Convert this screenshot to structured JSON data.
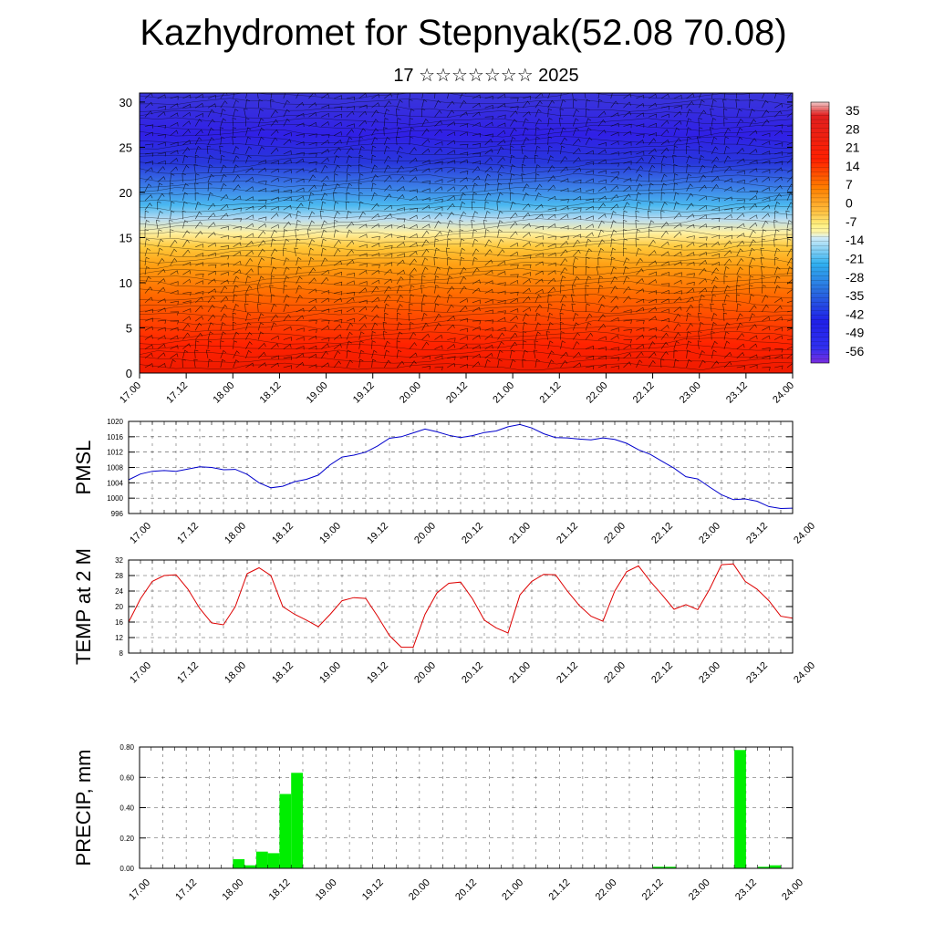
{
  "title": "Kazhydromet for Stepnyak(52.08 70.08)",
  "subtitle": "17 ☆☆☆☆☆☆☆ 2025",
  "time_labels": [
    "17.00",
    "17.12",
    "18.00",
    "18.12",
    "19.00",
    "19.12",
    "20.00",
    "20.12",
    "21.00",
    "21.12",
    "22.00",
    "22.12",
    "23.00",
    "23.12",
    "24.00"
  ],
  "chart_data": [
    {
      "type": "heatmap",
      "name": "upper-air-temperature-cross-section",
      "ylim": [
        0,
        31
      ],
      "yticks": [
        0,
        5,
        10,
        15,
        20,
        25,
        30
      ],
      "colorbar_labels": [
        "35",
        "28",
        "21",
        "14",
        "7",
        "0",
        "-7",
        "-14",
        "-21",
        "-28",
        "-35",
        "-42",
        "-49",
        "-56"
      ],
      "overlay": "wind barbs"
    },
    {
      "type": "line",
      "ylabel": "PMSL",
      "ylim": [
        996,
        1020
      ],
      "yticks": [
        996,
        1000,
        1004,
        1008,
        1012,
        1016,
        1020
      ],
      "x": [
        0,
        3,
        6,
        9,
        12,
        15,
        18,
        21,
        24,
        27,
        30,
        33,
        36,
        39,
        42,
        45,
        48,
        51,
        54,
        57,
        60,
        63,
        66,
        69,
        72,
        75,
        78,
        81,
        84,
        87,
        90,
        93,
        96,
        99,
        102,
        105,
        108,
        111,
        114,
        117,
        120,
        123,
        126,
        129,
        132,
        135,
        138,
        141,
        144,
        147,
        150,
        153,
        156,
        159,
        162,
        165,
        168
      ],
      "series": [
        {
          "color": "#0000cc",
          "values": [
            1004.8,
            1006.3,
            1007.0,
            1007.2,
            1007.0,
            1007.6,
            1008.2,
            1008.0,
            1007.4,
            1007.5,
            1006.2,
            1004.0,
            1002.7,
            1003.1,
            1004.3,
            1004.9,
            1006.0,
            1008.7,
            1010.7,
            1011.2,
            1012.0,
            1013.6,
            1015.6,
            1016.0,
            1017.0,
            1018.0,
            1017.3,
            1016.4,
            1015.8,
            1016.3,
            1017.1,
            1017.5,
            1018.6,
            1019.2,
            1018.3,
            1016.8,
            1015.8,
            1015.7,
            1015.4,
            1015.2,
            1015.7,
            1015.3,
            1014.3,
            1012.6,
            1011.4,
            1009.6,
            1007.8,
            1005.6,
            1005.0,
            1002.9,
            1000.9,
            999.6,
            999.8,
            999.2,
            997.8,
            997.3,
            997.4
          ]
        }
      ]
    },
    {
      "type": "line",
      "ylabel": "TEMP at 2 M",
      "ylim": [
        8,
        32
      ],
      "yticks": [
        8,
        12,
        16,
        20,
        24,
        28,
        32
      ],
      "x": [
        0,
        3,
        6,
        9,
        12,
        15,
        18,
        21,
        24,
        27,
        30,
        33,
        36,
        39,
        42,
        45,
        48,
        51,
        54,
        57,
        60,
        63,
        66,
        69,
        72,
        75,
        78,
        81,
        84,
        87,
        90,
        93,
        96,
        99,
        102,
        105,
        108,
        111,
        114,
        117,
        120,
        123,
        126,
        129,
        132,
        135,
        138,
        141,
        144,
        147,
        150,
        153,
        156,
        159,
        162,
        165,
        168
      ],
      "series": [
        {
          "color": "#dd0000",
          "values": [
            16,
            22,
            26.5,
            28,
            28.2,
            24.5,
            19.5,
            15.8,
            15.3,
            20,
            28.5,
            30,
            28,
            20,
            18,
            16.5,
            14.8,
            18,
            21.5,
            22.3,
            22.1,
            17.5,
            12.5,
            9.5,
            9.5,
            18,
            23.5,
            26,
            26.3,
            22,
            16.5,
            14.5,
            13.2,
            23,
            26.5,
            28.3,
            28.2,
            24,
            20.3,
            17.5,
            16.2,
            24,
            29,
            30.5,
            26.5,
            23,
            19.3,
            20.5,
            19.2,
            24.5,
            30.8,
            31,
            26.5,
            24.5,
            21.5,
            17.5,
            17
          ]
        }
      ]
    },
    {
      "type": "bar",
      "ylabel": "PRECIP, mm",
      "ylim": [
        0,
        0.8
      ],
      "yticks": [
        "0.00",
        "0.20",
        "0.40",
        "0.60",
        "0.80"
      ],
      "bar_color": "#00ee00",
      "bars": [
        {
          "x": 24,
          "value": 0.06
        },
        {
          "x": 27,
          "value": 0.02
        },
        {
          "x": 30,
          "value": 0.11
        },
        {
          "x": 33,
          "value": 0.1
        },
        {
          "x": 36,
          "value": 0.49
        },
        {
          "x": 39,
          "value": 0.63
        },
        {
          "x": 132,
          "value": 0.01
        },
        {
          "x": 135,
          "value": 0.01
        },
        {
          "x": 153,
          "value": 0.78
        },
        {
          "x": 159,
          "value": 0.01
        },
        {
          "x": 162,
          "value": 0.02
        }
      ]
    }
  ]
}
